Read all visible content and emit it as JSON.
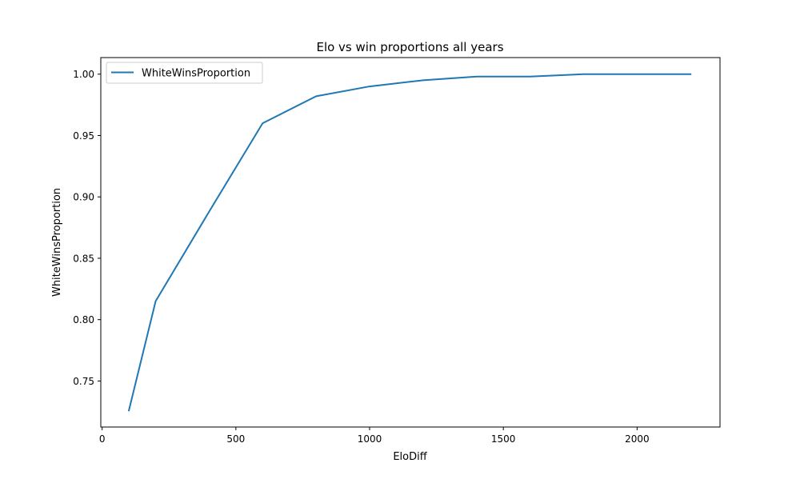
{
  "chart_data": {
    "type": "line",
    "title": "Elo vs win proportions all years",
    "xlabel": "EloDiff",
    "ylabel": "WhiteWinsProportion",
    "xlim": [
      -5,
      2310
    ],
    "ylim": [
      0.7125,
      1.0135
    ],
    "x_ticks": [
      0,
      500,
      1000,
      1500,
      2000
    ],
    "x_tick_labels": [
      "0",
      "500",
      "1000",
      "1500",
      "2000"
    ],
    "y_ticks": [
      0.75,
      0.8,
      0.85,
      0.9,
      0.95,
      1.0
    ],
    "y_tick_labels": [
      "0.75",
      "0.80",
      "0.85",
      "0.90",
      "0.95",
      "1.00"
    ],
    "grid": false,
    "legend_position": "top-left",
    "series": [
      {
        "name": "WhiteWinsProportion",
        "color": "#1f77b4",
        "x": [
          100,
          200,
          400,
          600,
          800,
          1000,
          1200,
          1400,
          1600,
          1800,
          2000,
          2200
        ],
        "y": [
          0.726,
          0.815,
          0.888,
          0.96,
          0.982,
          0.99,
          0.995,
          0.998,
          0.998,
          1.0,
          1.0,
          1.0
        ]
      }
    ]
  }
}
